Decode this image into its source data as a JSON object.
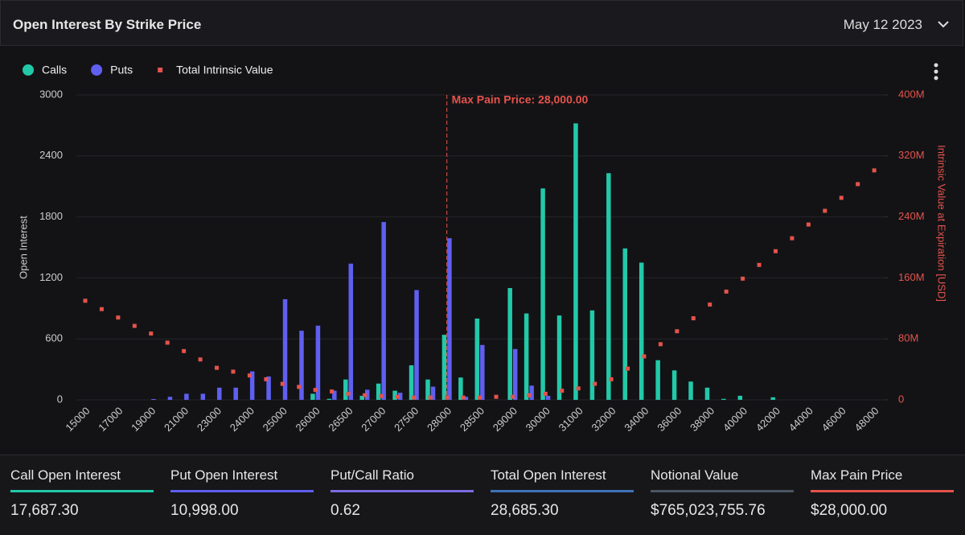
{
  "header": {
    "title": "Open Interest By Strike Price",
    "date": "May 12 2023"
  },
  "chart_data": {
    "type": "bar",
    "categories": [
      "15000",
      null,
      "17000",
      null,
      "19000",
      null,
      "21000",
      null,
      "23000",
      null,
      "24000",
      null,
      "25000",
      null,
      "26000",
      null,
      "26500",
      null,
      "27000",
      null,
      "27500",
      null,
      "28000",
      null,
      "28500",
      null,
      "29000",
      null,
      "30000",
      null,
      "31000",
      null,
      "32000",
      null,
      "34000",
      null,
      "36000",
      null,
      "38000",
      null,
      "40000",
      null,
      "42000",
      null,
      "44000",
      null,
      "46000",
      null,
      "48000"
    ],
    "series": [
      {
        "name": "Calls",
        "color": "#22c9a9",
        "values": [
          0,
          0,
          0,
          0,
          0,
          0,
          0,
          0,
          0,
          0,
          0,
          0,
          0,
          0,
          60,
          10,
          200,
          40,
          160,
          90,
          340,
          200,
          640,
          220,
          800,
          0,
          1100,
          850,
          2080,
          830,
          2720,
          880,
          2230,
          1490,
          1350,
          390,
          290,
          180,
          120,
          10,
          40,
          0,
          25,
          0,
          0,
          0,
          0,
          0,
          0
        ]
      },
      {
        "name": "Puts",
        "color": "#5f5ff0",
        "values": [
          0,
          0,
          0,
          0,
          8,
          30,
          60,
          60,
          120,
          120,
          280,
          230,
          990,
          680,
          730,
          90,
          1340,
          100,
          1750,
          70,
          1080,
          130,
          1590,
          30,
          540,
          0,
          500,
          140,
          40,
          0,
          0,
          0,
          0,
          0,
          0,
          0,
          0,
          0,
          0,
          0,
          0,
          0,
          0,
          0,
          0,
          0,
          0,
          0,
          0
        ]
      },
      {
        "name": "Total Intrinsic Value",
        "color": "#e5534b",
        "axis": "y2",
        "type": "scatter",
        "values": [
          130,
          119,
          108,
          97,
          87,
          75,
          64,
          53,
          42,
          37,
          32,
          27,
          21,
          17,
          13,
          11,
          8,
          6,
          5,
          4,
          3,
          3,
          3,
          3,
          3,
          4,
          4,
          6,
          8,
          12,
          15,
          21,
          27,
          41,
          57,
          73,
          90,
          107,
          125,
          142,
          159,
          177,
          195,
          212,
          230,
          248,
          265,
          283,
          301
        ]
      }
    ],
    "ylabel": "Open Interest",
    "y2label": "Intrinsic Value at Expiration [USD]",
    "ylim": [
      0,
      3000
    ],
    "yticks": [
      0,
      600,
      1200,
      1800,
      2400,
      3000
    ],
    "y2lim": [
      0,
      400
    ],
    "y2ticks": [
      0,
      {
        "value": 80,
        "label": "80M"
      },
      {
        "value": 160,
        "label": "160M"
      },
      {
        "value": 240,
        "label": "240M"
      },
      {
        "value": 320,
        "label": "320M"
      },
      {
        "value": 400,
        "label": "400M"
      }
    ],
    "grid": true,
    "annotation": {
      "text": "Max Pain Price: 28,000.00",
      "category": "28000"
    }
  },
  "stats": [
    {
      "label": "Call Open Interest",
      "value": "17,687.30",
      "color": "#22c9a9"
    },
    {
      "label": "Put Open Interest",
      "value": "10,998.00",
      "color": "#5f5ff0"
    },
    {
      "label": "Put/Call Ratio",
      "value": "0.62",
      "color": "#7a6be0"
    },
    {
      "label": "Total Open Interest",
      "value": "28,685.30",
      "color": "#3f72b8"
    },
    {
      "label": "Notional Value",
      "value": "$765,023,755.76",
      "color": "#4b5563"
    },
    {
      "label": "Max Pain Price",
      "value": "$28,000.00",
      "color": "#e5534b"
    }
  ]
}
